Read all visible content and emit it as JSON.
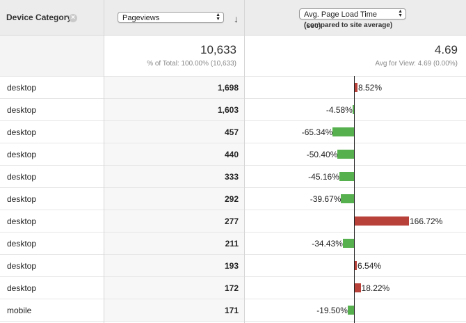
{
  "header": {
    "dimension_label": "Device Category",
    "remove_icon": "close-icon",
    "metric_select": "Pageviews",
    "sort_icon": "arrow-down-icon",
    "compare_select": "Avg. Page Load Time (sec)",
    "compare_subtitle": "(compared to site average)"
  },
  "summary": {
    "pageviews_total": "10,633",
    "pageviews_sub": "% of Total: 100.00% (10,633)",
    "load_avg": "4.69",
    "load_sub": "Avg for View: 4.69 (0.00%)"
  },
  "colors": {
    "positive_bar": "#b8413a",
    "negative_bar": "#56b04e"
  },
  "rows": [
    {
      "device": "desktop",
      "pageviews": "1,698",
      "delta_label": "8.52%",
      "delta": 8.52
    },
    {
      "device": "desktop",
      "pageviews": "1,603",
      "delta_label": "-4.58%",
      "delta": -4.58
    },
    {
      "device": "desktop",
      "pageviews": "457",
      "delta_label": "-65.34%",
      "delta": -65.34
    },
    {
      "device": "desktop",
      "pageviews": "440",
      "delta_label": "-50.40%",
      "delta": -50.4
    },
    {
      "device": "desktop",
      "pageviews": "333",
      "delta_label": "-45.16%",
      "delta": -45.16
    },
    {
      "device": "desktop",
      "pageviews": "292",
      "delta_label": "-39.67%",
      "delta": -39.67
    },
    {
      "device": "desktop",
      "pageviews": "277",
      "delta_label": "166.72%",
      "delta": 166.72
    },
    {
      "device": "desktop",
      "pageviews": "211",
      "delta_label": "-34.43%",
      "delta": -34.43
    },
    {
      "device": "desktop",
      "pageviews": "193",
      "delta_label": "6.54%",
      "delta": 6.54
    },
    {
      "device": "desktop",
      "pageviews": "172",
      "delta_label": "18.22%",
      "delta": 18.22
    },
    {
      "device": "mobile",
      "pageviews": "171",
      "delta_label": "-19.50%",
      "delta": -19.5
    }
  ]
}
